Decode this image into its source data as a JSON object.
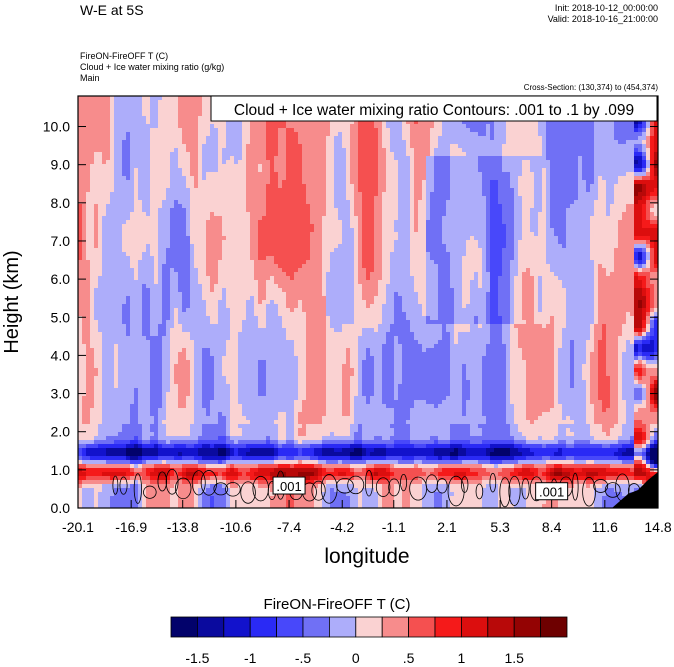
{
  "header": {
    "title": "W-E at 5S",
    "init": "Init: 2018-10-12_00:00:00",
    "valid": "Valid: 2018-10-16_21:00:00"
  },
  "subtitles": [
    "FireON-FireOFF T   (C)",
    "Cloud + Ice water mixing ratio   (g/kg)",
    "Main"
  ],
  "cross_section": "Cross-Section: (130,374) to (454,374)",
  "contour_info": "Cloud + Ice water mixing ratio Contours: .001 to .1 by .099",
  "colors": {
    "levels": [
      "#02026b",
      "#0a0a9e",
      "#1212cc",
      "#2a2af5",
      "#4848fa",
      "#7070f5",
      "#adadfa",
      "#fad2d2",
      "#f78c8c",
      "#f55050",
      "#f51a1a",
      "#dc0e0e",
      "#b80909",
      "#940303",
      "#6e0000"
    ],
    "terrain": "#000000"
  },
  "chart_data": {
    "type": "heatmap",
    "title": "W-E at 5S",
    "xlabel": "longitude",
    "ylabel": "Height (km)",
    "xlim": [
      -20.1,
      14.8
    ],
    "ylim": [
      0.0,
      10.8
    ],
    "x_ticks": [
      "-20.1",
      "-16.9",
      "-13.8",
      "-10.6",
      "-7.4",
      "-4.2",
      "-1.1",
      "2.1",
      "5.3",
      "8.4",
      "11.6",
      "14.8"
    ],
    "x_tick_values": [
      -20.1,
      -16.9,
      -13.8,
      -10.6,
      -7.4,
      -4.2,
      -1.1,
      2.1,
      5.3,
      8.4,
      11.6,
      14.8
    ],
    "y_ticks": [
      "0.0",
      "1.0",
      "2.0",
      "3.0",
      "4.0",
      "5.0",
      "6.0",
      "7.0",
      "8.0",
      "9.0",
      "10.0"
    ],
    "y_tick_values": [
      0,
      1,
      2,
      3,
      4,
      5,
      6,
      7,
      8,
      9,
      10
    ],
    "contour_labels": [
      {
        "text": ".001",
        "x": -7.4,
        "y": 0.55
      },
      {
        "text": ".001",
        "x": 8.4,
        "y": 0.4
      }
    ],
    "colorbar": {
      "title": "FireON-FireOFF T  (C)",
      "tick_labels": [
        "-1.5",
        "-1",
        "-.5",
        "0",
        ".5",
        "1",
        "1.5"
      ],
      "tick_values": [
        -1.5,
        -1,
        -0.5,
        0,
        0.5,
        1,
        1.5
      ],
      "level_min": -1.75,
      "level_step": 0.25,
      "n_colors": 15
    }
  }
}
